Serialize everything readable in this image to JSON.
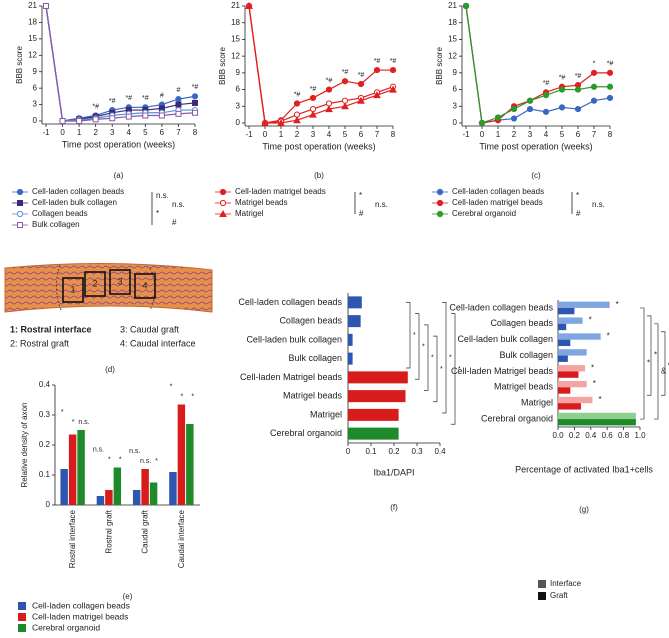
{
  "chart_data": [
    {
      "type": "line",
      "panel_label": "(a)",
      "y_label": "BBB score",
      "x_label": "Time post operation (weeks)",
      "x": [
        -1,
        0,
        1,
        2,
        3,
        4,
        5,
        6,
        7,
        8
      ],
      "xlim": [
        -1,
        8
      ],
      "xticks": [
        -1,
        0,
        1,
        2,
        3,
        4,
        5,
        6,
        7,
        8
      ],
      "ylim": [
        0,
        21
      ],
      "yticks": [
        0,
        3,
        6,
        9,
        12,
        15,
        18,
        21
      ],
      "series": [
        {
          "name": "Cell-laden collagen beads",
          "color": "#3a66c4",
          "marker": "circle",
          "filled": true,
          "values": [
            21,
            0,
            0.5,
            1,
            2,
            2.5,
            2.5,
            3,
            4,
            4.5
          ]
        },
        {
          "name": "Cell-laden bulk collagen",
          "color": "#3a2a78",
          "marker": "square",
          "filled": true,
          "values": [
            21,
            0,
            0.3,
            0.8,
            1.5,
            2,
            2,
            2.3,
            3,
            3.3
          ]
        },
        {
          "name": "Collagen beads",
          "color": "#5b8fd6",
          "marker": "circle",
          "filled": false,
          "values": [
            21,
            0,
            0.2,
            0.5,
            1,
            1.3,
            1.5,
            1.5,
            2,
            2
          ]
        },
        {
          "name": "Bulk collagen",
          "color": "#8a5aa8",
          "marker": "square",
          "filled": false,
          "values": [
            21,
            0,
            0,
            0.3,
            0.5,
            0.8,
            1,
            1,
            1.3,
            1.5
          ]
        }
      ],
      "annotations": [
        {
          "x": 2,
          "text": "*#"
        },
        {
          "x": 3,
          "text": "*#"
        },
        {
          "x": 4,
          "text": "*#"
        },
        {
          "x": 5,
          "text": "*#"
        },
        {
          "x": 6,
          "text": "#"
        },
        {
          "x": 7,
          "text": "#"
        },
        {
          "x": 8,
          "text": "*#"
        }
      ],
      "legend_notes": [
        "n.s.",
        "n.s.",
        "*",
        "#"
      ]
    },
    {
      "type": "line",
      "panel_label": "(b)",
      "y_label": "BBB score",
      "x_label": "Time post operation (weeks)",
      "x": [
        -1,
        0,
        1,
        2,
        3,
        4,
        5,
        6,
        7,
        8
      ],
      "xlim": [
        -1,
        8
      ],
      "xticks": [
        -1,
        0,
        1,
        2,
        3,
        4,
        5,
        6,
        7,
        8
      ],
      "ylim": [
        0,
        21
      ],
      "yticks": [
        0,
        3,
        6,
        9,
        12,
        15,
        18,
        21
      ],
      "series": [
        {
          "name": "Cell-laden matrigel beads",
          "color": "#e02020",
          "marker": "circle",
          "filled": true,
          "values": [
            21,
            0,
            0.5,
            3.5,
            4.5,
            6,
            7.5,
            7,
            9.5,
            9.5
          ]
        },
        {
          "name": "Matrigel beads",
          "color": "#e02020",
          "marker": "circle",
          "filled": false,
          "values": [
            21,
            0,
            0.3,
            1.5,
            2.5,
            3.5,
            4,
            4.5,
            5.5,
            6.5
          ]
        },
        {
          "name": "Matrigel",
          "color": "#e02020",
          "marker": "triangle",
          "filled": true,
          "values": [
            21,
            0,
            0,
            0.5,
            1.5,
            2.5,
            3,
            4,
            5,
            6
          ]
        }
      ],
      "annotations": [
        {
          "x": 2,
          "text": "*#"
        },
        {
          "x": 3,
          "text": "*#"
        },
        {
          "x": 4,
          "text": "*#"
        },
        {
          "x": 5,
          "text": "*#"
        },
        {
          "x": 6,
          "text": "*#"
        },
        {
          "x": 7,
          "text": "*#"
        },
        {
          "x": 8,
          "text": "*#"
        }
      ],
      "legend_notes": [
        "*",
        "n.s.",
        "#"
      ]
    },
    {
      "type": "line",
      "panel_label": "(c)",
      "y_label": "BBB score",
      "x_label": "Time post operation (weeks)",
      "x": [
        -1,
        0,
        1,
        2,
        3,
        4,
        5,
        6,
        7,
        8
      ],
      "xlim": [
        -1,
        8
      ],
      "xticks": [
        -1,
        0,
        1,
        2,
        3,
        4,
        5,
        6,
        7,
        8
      ],
      "ylim": [
        0,
        21
      ],
      "yticks": [
        0,
        3,
        6,
        9,
        12,
        15,
        18,
        21
      ],
      "series": [
        {
          "name": "Cell-laden collagen beads",
          "color": "#3a66c4",
          "marker": "circle",
          "filled": true,
          "values": [
            21,
            0,
            0.5,
            0.8,
            2.5,
            2,
            2.8,
            2.5,
            4,
            4.5
          ]
        },
        {
          "name": "Cell-laden matrigel beads",
          "color": "#e02020",
          "marker": "circle",
          "filled": true,
          "values": [
            21,
            0,
            0.5,
            3,
            4,
            5.5,
            6.5,
            6.8,
            9,
            9
          ]
        },
        {
          "name": "Cerebral organoid",
          "color": "#2a9a2a",
          "marker": "circle",
          "filled": true,
          "values": [
            21,
            0,
            1,
            2.5,
            4,
            5,
            6,
            6,
            6.5,
            6.5
          ]
        }
      ],
      "annotations": [
        {
          "x": 4,
          "text": "*#"
        },
        {
          "x": 5,
          "text": "*#"
        },
        {
          "x": 6,
          "text": "*#"
        },
        {
          "x": 7,
          "text": "*"
        },
        {
          "x": 8,
          "text": "*#"
        }
      ],
      "legend_notes": [
        "*",
        "n.s.",
        "#"
      ]
    },
    {
      "type": "bar",
      "panel_label": "(e)",
      "y_label": "Relative density of axon",
      "categories": [
        "Rostral interface",
        "Rostral graft",
        "Caudal graft",
        "Caudal interface"
      ],
      "ylim": [
        0,
        0.4
      ],
      "yticks": [
        0,
        0.1,
        0.2,
        0.3,
        0.4
      ],
      "series": [
        {
          "name": "Cell-laden collagen beads",
          "color": "#2c56b0",
          "values": [
            0.12,
            0.03,
            0.05,
            0.11
          ]
        },
        {
          "name": "Cell-laden matrigel beads",
          "color": "#d81c1c",
          "values": [
            0.235,
            0.05,
            0.12,
            0.335
          ]
        },
        {
          "name": "Cerebral organoid",
          "color": "#1e8a2a",
          "values": [
            0.25,
            0.125,
            0.075,
            0.27
          ]
        }
      ],
      "significance": [
        [
          "*",
          "*",
          "n.s."
        ],
        [
          "n.s.",
          "*",
          "*"
        ],
        [
          "n.s.",
          "n.s.",
          "*"
        ],
        [
          "*",
          "*",
          "*"
        ]
      ]
    },
    {
      "type": "hbar",
      "panel_label": "(f)",
      "x_label": "Iba1/DAPI",
      "categories": [
        "Cell-laden collagen beads",
        "Collagen beads",
        "Cell-laden bulk collagen",
        "Bulk collagen",
        "Cell-laden Matrigel beads",
        "Matrigel beads",
        "Matrigel",
        "Cerebral organoid"
      ],
      "values": [
        0.06,
        0.055,
        0.02,
        0.02,
        0.26,
        0.25,
        0.22,
        0.22
      ],
      "colors": [
        "#2c56b0",
        "#2c56b0",
        "#2c56b0",
        "#2c56b0",
        "#d81c1c",
        "#d81c1c",
        "#d81c1c",
        "#1e8a2a"
      ],
      "xlim": [
        0,
        0.4
      ],
      "xticks": [
        0,
        0.1,
        0.2,
        0.3,
        0.4
      ],
      "bracket_notes": [
        "*",
        "*",
        "*",
        "*",
        "*",
        "*"
      ]
    },
    {
      "type": "hbar_grouped",
      "panel_label": "(g)",
      "x_label": "Percentage of activated Iba1+cells",
      "categories": [
        "Cell-laden collagen beads",
        "Collagen beads",
        "Cell-laden bulk collagen",
        "Bulk collagen",
        "Cell-laden Matrigel beads",
        "Matrigel beads",
        "Matrigel",
        "Cerebral organoid"
      ],
      "xlim": [
        0,
        1
      ],
      "xticks": [
        {
          "value": 0,
          "label": "0.0"
        },
        0.2,
        0.4,
        0.6,
        0.8,
        {
          "value": 1,
          "label": "1.0"
        }
      ],
      "series": [
        {
          "name": "Interface",
          "color": "#555555",
          "colors": [
            "#7fa6e0",
            "#7fa6e0",
            "#7fa6e0",
            "#7fa6e0",
            "#f4a3a3",
            "#f4a3a3",
            "#f4a3a3",
            "#8fd08f"
          ],
          "values": [
            0.63,
            0.3,
            0.52,
            0.35,
            0.33,
            0.35,
            0.42,
            0.95
          ]
        },
        {
          "name": "Graft",
          "color": "#111111",
          "colors": [
            "#2c56b0",
            "#2c56b0",
            "#2c56b0",
            "#2c56b0",
            "#d81c1c",
            "#d81c1c",
            "#d81c1c",
            "#1e8a2a"
          ],
          "values": [
            0.2,
            0.1,
            0.15,
            0.12,
            0.25,
            0.15,
            0.28,
            0.95
          ]
        }
      ],
      "bar_notes": [
        {
          "category": "Cell-laden collagen beads",
          "text": "*"
        },
        {
          "category": "Collagen beads",
          "text": "*"
        },
        {
          "category": "Cell-laden bulk collagen",
          "text": "*"
        },
        {
          "category": "Cell-laden Matrigel beads",
          "text": "*"
        },
        {
          "category": "Matrigel beads",
          "text": "*"
        },
        {
          "category": "Matrigel",
          "text": "*"
        }
      ],
      "bracket_notes": [
        "*",
        "*",
        "&",
        "&"
      ]
    }
  ],
  "diagram": {
    "panel_label": "(d)",
    "boxes": [
      "1",
      "2",
      "3",
      "4"
    ],
    "legend": [
      "1: Rostral interface",
      "2: Rostral graft",
      "3: Caudal graft",
      "4: Caudal interface"
    ]
  }
}
